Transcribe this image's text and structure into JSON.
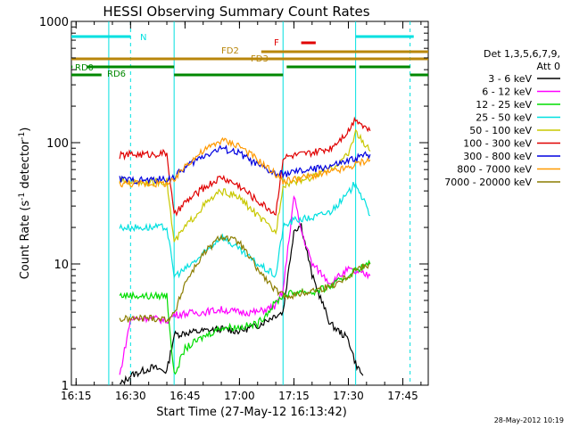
{
  "chart_data": {
    "type": "line",
    "title": "HESSI Observing Summary Count Rates",
    "xlabel": "Start Time (27-May-12 16:13:42)",
    "ylabel_main": "Count Rate (s",
    "ylabel_sup1": "-1",
    "ylabel_mid": " detector",
    "ylabel_sup2": "-1",
    "ylabel_end": ")",
    "y_scale": "log",
    "xlim": [
      "16:13:42",
      "17:52:00"
    ],
    "ylim": [
      1,
      1000
    ],
    "x_ticks": [
      "16:15",
      "16:30",
      "16:45",
      "17:00",
      "17:15",
      "17:30",
      "17:45"
    ],
    "y_ticks": [
      "1",
      "10",
      "100",
      "1000"
    ],
    "footer": "28-May-2012 10:19",
    "legend": {
      "header1": "Det 1,3,5,6,7,9,",
      "header2": "Att 0",
      "entries": [
        {
          "label": "3 - 6 keV",
          "color": "#000000"
        },
        {
          "label": "6 - 12 keV",
          "color": "#ff00ff"
        },
        {
          "label": "12 - 25 keV",
          "color": "#00dd00"
        },
        {
          "label": "25 - 50 keV",
          "color": "#00e0e0"
        },
        {
          "label": "50 - 100 keV",
          "color": "#c8c800"
        },
        {
          "label": "100 - 300 keV",
          "color": "#e00000"
        },
        {
          "label": "300 - 800 keV",
          "color": "#0000e0"
        },
        {
          "label": "800 - 7000 keV",
          "color": "#ff9900"
        },
        {
          "label": "7000 - 20000 keV",
          "color": "#8b7d00"
        }
      ]
    },
    "flags": [
      {
        "label": "N",
        "color": "#00e0e0",
        "segments": [
          [
            "16:13:42",
            "16:30"
          ],
          [
            "17:32",
            "17:48"
          ]
        ]
      },
      {
        "label": "F",
        "color": "#e00000",
        "segments": [
          [
            "17:17",
            "17:21"
          ]
        ]
      },
      {
        "label": "FD2",
        "color": "#b8860b",
        "segments": [
          [
            "17:06",
            "17:52"
          ]
        ]
      },
      {
        "label": "FD3",
        "color": "#b8860b",
        "segments": [
          [
            "16:13:42",
            "17:52"
          ]
        ]
      },
      {
        "label": "RD0",
        "color": "#008800",
        "segments": [
          [
            "16:13:42",
            "16:14"
          ],
          [
            "16:18",
            "16:42"
          ],
          [
            "17:13",
            "17:32"
          ],
          [
            "17:33",
            "17:47"
          ]
        ]
      },
      {
        "label": "RD6",
        "color": "#008800",
        "segments": [
          [
            "16:13:42",
            "16:22"
          ],
          [
            "16:42",
            "17:12"
          ],
          [
            "17:47",
            "17:52"
          ]
        ]
      }
    ],
    "series": [
      {
        "name": "3 - 6 keV",
        "color": "#000000",
        "x": [
          "16:27",
          "16:30",
          "16:33",
          "16:36",
          "16:40",
          "16:42",
          "16:45",
          "16:50",
          "16:55",
          "17:00",
          "17:05",
          "17:10",
          "17:12",
          "17:15",
          "17:17",
          "17:20",
          "17:25",
          "17:30",
          "17:32",
          "17:34"
        ],
        "y": [
          1.0,
          1.2,
          1.3,
          1.4,
          1.3,
          2.6,
          2.7,
          2.8,
          2.9,
          2.8,
          3.1,
          3.8,
          4.0,
          19.0,
          21.0,
          8.0,
          3.2,
          2.4,
          1.5,
          1.2
        ]
      },
      {
        "name": "6 - 12 keV",
        "color": "#ff00ff",
        "x": [
          "16:27",
          "16:30",
          "16:35",
          "16:40",
          "16:42",
          "16:45",
          "16:50",
          "16:55",
          "17:00",
          "17:05",
          "17:10",
          "17:12",
          "17:15",
          "17:17",
          "17:20",
          "17:25",
          "17:30",
          "17:32",
          "17:36"
        ],
        "y": [
          1.2,
          3.5,
          3.6,
          3.4,
          3.8,
          3.9,
          4.0,
          4.2,
          4.0,
          4.0,
          4.5,
          6.0,
          36.0,
          19.0,
          10.0,
          7.0,
          9.0,
          8.5,
          8.0
        ]
      },
      {
        "name": "12 - 25 keV",
        "color": "#00dd00",
        "x": [
          "16:27",
          "16:30",
          "16:35",
          "16:40",
          "16:42",
          "16:45",
          "16:50",
          "16:55",
          "17:00",
          "17:05",
          "17:10",
          "17:12",
          "17:15",
          "17:17",
          "17:20",
          "17:25",
          "17:30",
          "17:32",
          "17:36"
        ],
        "y": [
          5.5,
          5.5,
          5.4,
          5.5,
          1.2,
          2.0,
          2.5,
          3.0,
          3.0,
          3.2,
          4.8,
          5.5,
          5.8,
          6.0,
          5.8,
          6.5,
          8.0,
          9.0,
          10.0
        ]
      },
      {
        "name": "25 - 50 keV",
        "color": "#00e0e0",
        "x": [
          "16:27",
          "16:30",
          "16:35",
          "16:40",
          "16:42",
          "16:45",
          "16:50",
          "16:55",
          "17:00",
          "17:05",
          "17:10",
          "17:12",
          "17:15",
          "17:20",
          "17:25",
          "17:30",
          "17:32",
          "17:34",
          "17:36"
        ],
        "y": [
          20,
          20,
          20,
          20,
          8,
          9,
          12,
          17,
          13,
          10,
          8,
          20,
          23,
          24,
          27,
          38,
          48,
          34,
          25
        ]
      },
      {
        "name": "50 - 100 keV",
        "color": "#c8c800",
        "x": [
          "16:27",
          "16:30",
          "16:35",
          "16:40",
          "16:42",
          "16:45",
          "16:50",
          "16:55",
          "17:00",
          "17:05",
          "17:10",
          "17:12",
          "17:15",
          "17:20",
          "17:25",
          "17:30",
          "17:32",
          "17:34",
          "17:36"
        ],
        "y": [
          48,
          48,
          47,
          48,
          15,
          20,
          30,
          40,
          35,
          25,
          18,
          45,
          48,
          52,
          60,
          80,
          125,
          100,
          85
        ]
      },
      {
        "name": "100 - 300 keV",
        "color": "#e00000",
        "x": [
          "16:27",
          "16:30",
          "16:35",
          "16:40",
          "16:42",
          "16:45",
          "16:50",
          "16:55",
          "17:00",
          "17:05",
          "17:10",
          "17:12",
          "17:15",
          "17:20",
          "17:25",
          "17:30",
          "17:32",
          "17:34",
          "17:36"
        ],
        "y": [
          78,
          80,
          80,
          82,
          25,
          32,
          42,
          52,
          44,
          33,
          26,
          75,
          78,
          82,
          90,
          125,
          160,
          140,
          125
        ]
      },
      {
        "name": "300 - 800 keV",
        "color": "#0000e0",
        "x": [
          "16:27",
          "16:30",
          "16:35",
          "16:40",
          "16:42",
          "16:45",
          "16:50",
          "16:55",
          "17:00",
          "17:05",
          "17:10",
          "17:12",
          "17:15",
          "17:20",
          "17:25",
          "17:30",
          "17:32",
          "17:34",
          "17:36"
        ],
        "y": [
          50,
          49,
          49,
          50,
          52,
          62,
          78,
          90,
          82,
          65,
          55,
          55,
          57,
          60,
          64,
          70,
          75,
          78,
          80
        ]
      },
      {
        "name": "800 - 7000 keV",
        "color": "#ff9900",
        "x": [
          "16:27",
          "16:30",
          "16:35",
          "16:40",
          "16:42",
          "16:45",
          "16:50",
          "16:55",
          "17:00",
          "17:05",
          "17:10",
          "17:12",
          "17:15",
          "17:20",
          "17:25",
          "17:30",
          "17:32",
          "17:34",
          "17:36"
        ],
        "y": [
          46,
          46,
          46,
          46,
          48,
          65,
          85,
          105,
          95,
          72,
          55,
          48,
          50,
          53,
          57,
          62,
          66,
          70,
          72
        ]
      },
      {
        "name": "7000 - 20000 keV",
        "color": "#8b7d00",
        "x": [
          "16:27",
          "16:30",
          "16:35",
          "16:40",
          "16:42",
          "16:45",
          "16:50",
          "16:55",
          "17:00",
          "17:05",
          "17:10",
          "17:12",
          "17:15",
          "17:20",
          "17:25",
          "17:30",
          "17:32",
          "17:34",
          "17:36"
        ],
        "y": [
          3.5,
          3.5,
          3.6,
          3.5,
          3.8,
          7.0,
          12.0,
          17.0,
          15.0,
          9.0,
          6.0,
          5.5,
          5.5,
          6.0,
          6.5,
          8.0,
          9.0,
          9.5,
          10.0
        ]
      }
    ],
    "vlines": [
      {
        "x": "16:24",
        "color": "#00e0e0",
        "style": "solid"
      },
      {
        "x": "16:30",
        "color": "#00e0e0",
        "style": "dashed"
      },
      {
        "x": "16:42",
        "color": "#00e0e0",
        "style": "solid"
      },
      {
        "x": "17:12",
        "color": "#00e0e0",
        "style": "solid"
      },
      {
        "x": "17:32",
        "color": "#00e0e0",
        "style": "solid"
      },
      {
        "x": "17:47",
        "color": "#00e0e0",
        "style": "dashed"
      }
    ]
  }
}
